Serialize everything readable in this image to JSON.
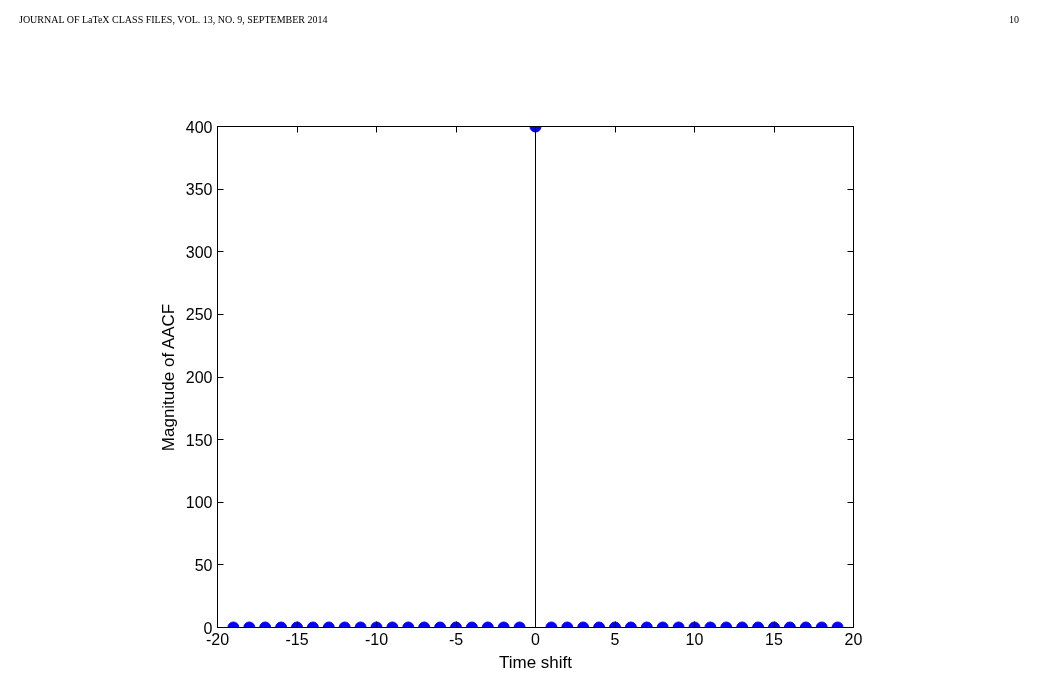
{
  "chart_data": {
    "type": "lollipop",
    "xlabel": "Time shift",
    "ylabel": "Magnitude of AACF",
    "annotations": [
      "JOURNAL OF LaTeX CLASS FILES, VOL. 13, NO. 9, SEPTEMBER 2014",
      "10"
    ],
    "x": [
      -19,
      -18,
      -17,
      -16,
      -15,
      -14,
      -13,
      -12,
      -11,
      -10,
      -9,
      -8,
      -7,
      -6,
      -5,
      -4,
      -3,
      -2,
      -1,
      0,
      1,
      2,
      3,
      4,
      5,
      6,
      7,
      8,
      9,
      10,
      11,
      12,
      13,
      14,
      15,
      16,
      17,
      18,
      19
    ],
    "values": [
      0,
      0,
      0,
      0,
      0,
      0,
      0,
      0,
      0,
      0,
      0,
      0,
      0,
      0,
      0,
      0,
      0,
      0,
      0,
      400,
      0,
      0,
      0,
      0,
      0,
      0,
      0,
      0,
      0,
      0,
      0,
      0,
      0,
      0,
      0,
      0,
      0,
      0,
      0
    ],
    "color": "#0000ff",
    "marker": "circle",
    "xlim": [
      -20,
      20
    ],
    "xticks": [
      -20,
      -15,
      -10,
      -5,
      0,
      5,
      10,
      15,
      20
    ],
    "ylim": [
      0,
      400
    ],
    "yticks": [
      0,
      50,
      100,
      150,
      200,
      250,
      300,
      350,
      400
    ]
  }
}
